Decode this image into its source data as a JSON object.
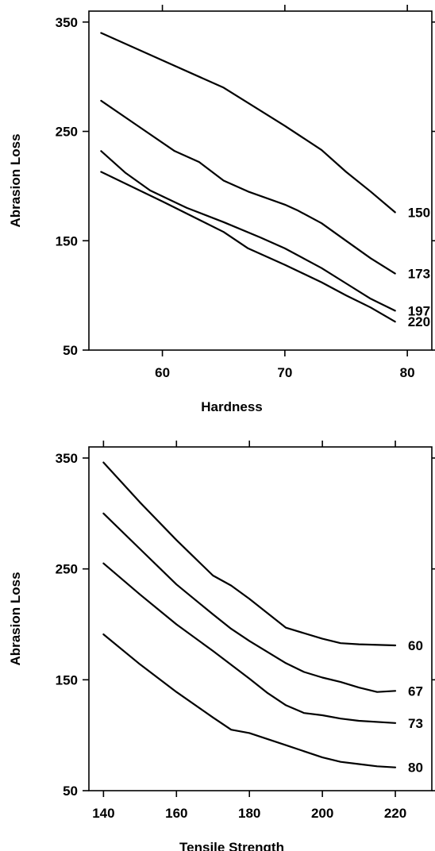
{
  "chart_data": [
    {
      "type": "line",
      "xlabel": "Hardness",
      "ylabel": "Abrasion Loss",
      "xlim": [
        54,
        82
      ],
      "ylim": [
        50,
        360
      ],
      "x_ticks": [
        60,
        70,
        80
      ],
      "x_tick_labels": [
        "60",
        "70",
        "80"
      ],
      "y_ticks": [
        50,
        150,
        250,
        350
      ],
      "y_tick_labels": [
        "50",
        "150",
        "250",
        "350"
      ],
      "grid": false,
      "series": [
        {
          "name": "150",
          "points": [
            [
              55,
              340
            ],
            [
              60,
              315
            ],
            [
              65,
              290
            ],
            [
              70,
              255
            ],
            [
              73,
              233
            ],
            [
              75,
              213
            ],
            [
              77,
              195
            ],
            [
              79,
              176
            ]
          ]
        },
        {
          "name": "173",
          "points": [
            [
              55,
              278
            ],
            [
              58,
              255
            ],
            [
              61,
              232
            ],
            [
              63,
              222
            ],
            [
              65,
              205
            ],
            [
              67,
              195
            ],
            [
              70,
              183
            ],
            [
              71,
              178
            ],
            [
              73,
              166
            ],
            [
              75,
              150
            ],
            [
              77,
              134
            ],
            [
              79,
              120
            ]
          ]
        },
        {
          "name": "197",
          "points": [
            [
              55,
              232
            ],
            [
              57,
              212
            ],
            [
              59,
              196
            ],
            [
              62,
              180
            ],
            [
              65,
              167
            ],
            [
              68,
              153
            ],
            [
              70,
              143
            ],
            [
              73,
              125
            ],
            [
              75,
              111
            ],
            [
              77,
              97
            ],
            [
              79,
              86
            ]
          ]
        },
        {
          "name": "220",
          "points": [
            [
              55,
              213
            ],
            [
              60,
              186
            ],
            [
              65,
              158
            ],
            [
              67,
              143
            ],
            [
              70,
              128
            ],
            [
              73,
              112
            ],
            [
              75,
              100
            ],
            [
              77,
              89
            ],
            [
              79,
              76
            ]
          ]
        }
      ]
    },
    {
      "type": "line",
      "xlabel": "Tensile Strength",
      "ylabel": "Abrasion Loss",
      "xlim": [
        136,
        230
      ],
      "ylim": [
        50,
        360
      ],
      "x_ticks": [
        140,
        160,
        180,
        200,
        220
      ],
      "x_tick_labels": [
        "140",
        "160",
        "180",
        "200",
        "220"
      ],
      "y_ticks": [
        50,
        150,
        250,
        350
      ],
      "y_tick_labels": [
        "50",
        "150",
        "250",
        "350"
      ],
      "grid": false,
      "series": [
        {
          "name": "60",
          "points": [
            [
              140,
              346
            ],
            [
              150,
              310
            ],
            [
              160,
              276
            ],
            [
              165,
              260
            ],
            [
              170,
              244
            ],
            [
              175,
              235
            ],
            [
              180,
              223
            ],
            [
              190,
              197
            ],
            [
              200,
              187
            ],
            [
              205,
              183
            ],
            [
              210,
              182
            ],
            [
              220,
              181
            ]
          ]
        },
        {
          "name": "67",
          "points": [
            [
              140,
              300
            ],
            [
              150,
              268
            ],
            [
              160,
              236
            ],
            [
              170,
              209
            ],
            [
              175,
              196
            ],
            [
              180,
              185
            ],
            [
              190,
              165
            ],
            [
              195,
              157
            ],
            [
              200,
              152
            ],
            [
              205,
              148
            ],
            [
              210,
              143
            ],
            [
              215,
              139
            ],
            [
              220,
              140
            ]
          ]
        },
        {
          "name": "73",
          "points": [
            [
              140,
              255
            ],
            [
              150,
              227
            ],
            [
              160,
              200
            ],
            [
              170,
              176
            ],
            [
              180,
              151
            ],
            [
              185,
              138
            ],
            [
              190,
              127
            ],
            [
              195,
              120
            ],
            [
              200,
              118
            ],
            [
              205,
              115
            ],
            [
              210,
              113
            ],
            [
              220,
              111
            ]
          ]
        },
        {
          "name": "80",
          "points": [
            [
              140,
              191
            ],
            [
              150,
              164
            ],
            [
              160,
              139
            ],
            [
              170,
              116
            ],
            [
              175,
              105
            ],
            [
              180,
              102
            ],
            [
              190,
              91
            ],
            [
              200,
              80
            ],
            [
              205,
              76
            ],
            [
              210,
              74
            ],
            [
              215,
              72
            ],
            [
              220,
              71
            ]
          ]
        }
      ]
    }
  ]
}
